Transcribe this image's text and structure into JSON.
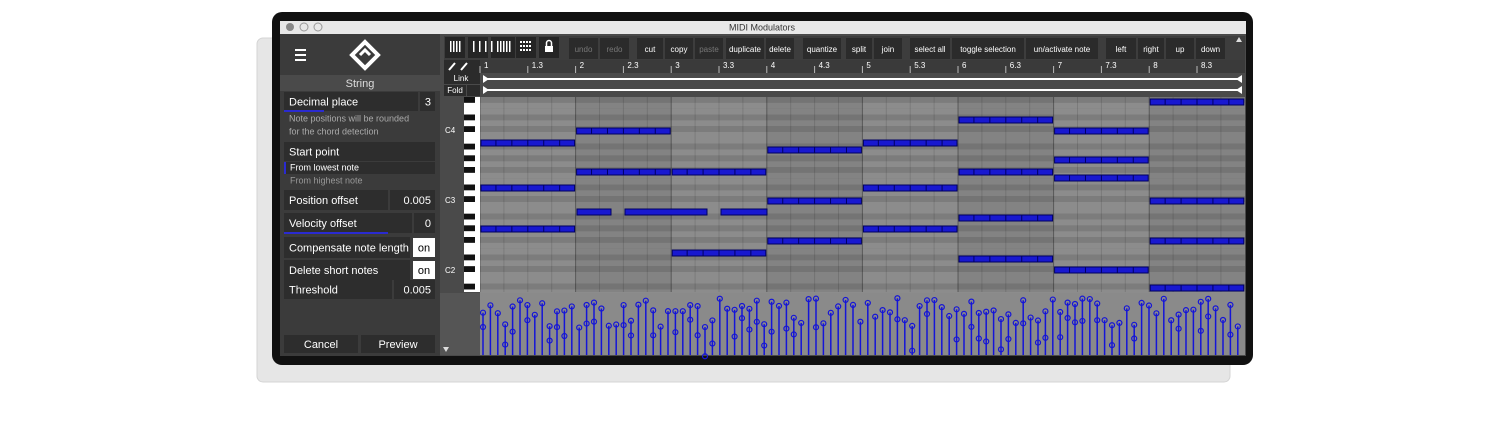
{
  "window": {
    "title": "MIDI Modulators"
  },
  "toolbar": {
    "buttons": [
      "undo",
      "redo",
      "cut",
      "copy",
      "paste",
      "duplicate",
      "delete",
      "quantize",
      "split",
      "join",
      "select all",
      "toggle selection",
      "un/activate note",
      "left",
      "right",
      "up",
      "down"
    ]
  },
  "ruler": {
    "labels": [
      "1",
      "1.3",
      "2",
      "2.3",
      "3",
      "3.3",
      "4",
      "4.3",
      "5",
      "5.3",
      "6",
      "6.3",
      "7",
      "7.3",
      "8",
      "8.3"
    ]
  },
  "lanes": {
    "link": "Link",
    "fold": "Fold"
  },
  "keyboard": {
    "labels": [
      "C4",
      "C3",
      "C2"
    ]
  },
  "panel": {
    "header": "String",
    "decimal_place": {
      "label": "Decimal place",
      "value": "3"
    },
    "note": [
      "Note positions will be rounded",
      "for the chord detection"
    ],
    "start_point": {
      "label": "Start point",
      "options": [
        "From lowest note",
        "From highest note"
      ]
    },
    "position_offset": {
      "label": "Position offset",
      "value": "0.005"
    },
    "velocity_offset": {
      "label": "Velocity offset",
      "value": "0"
    },
    "compensate": {
      "label": "Compensate note length",
      "value": "on"
    },
    "delete_short": {
      "label": "Delete short notes",
      "value": "on"
    },
    "threshold": {
      "label": "Threshold",
      "value": "0.005"
    },
    "buttons": [
      "Cancel",
      "Preview"
    ]
  }
}
